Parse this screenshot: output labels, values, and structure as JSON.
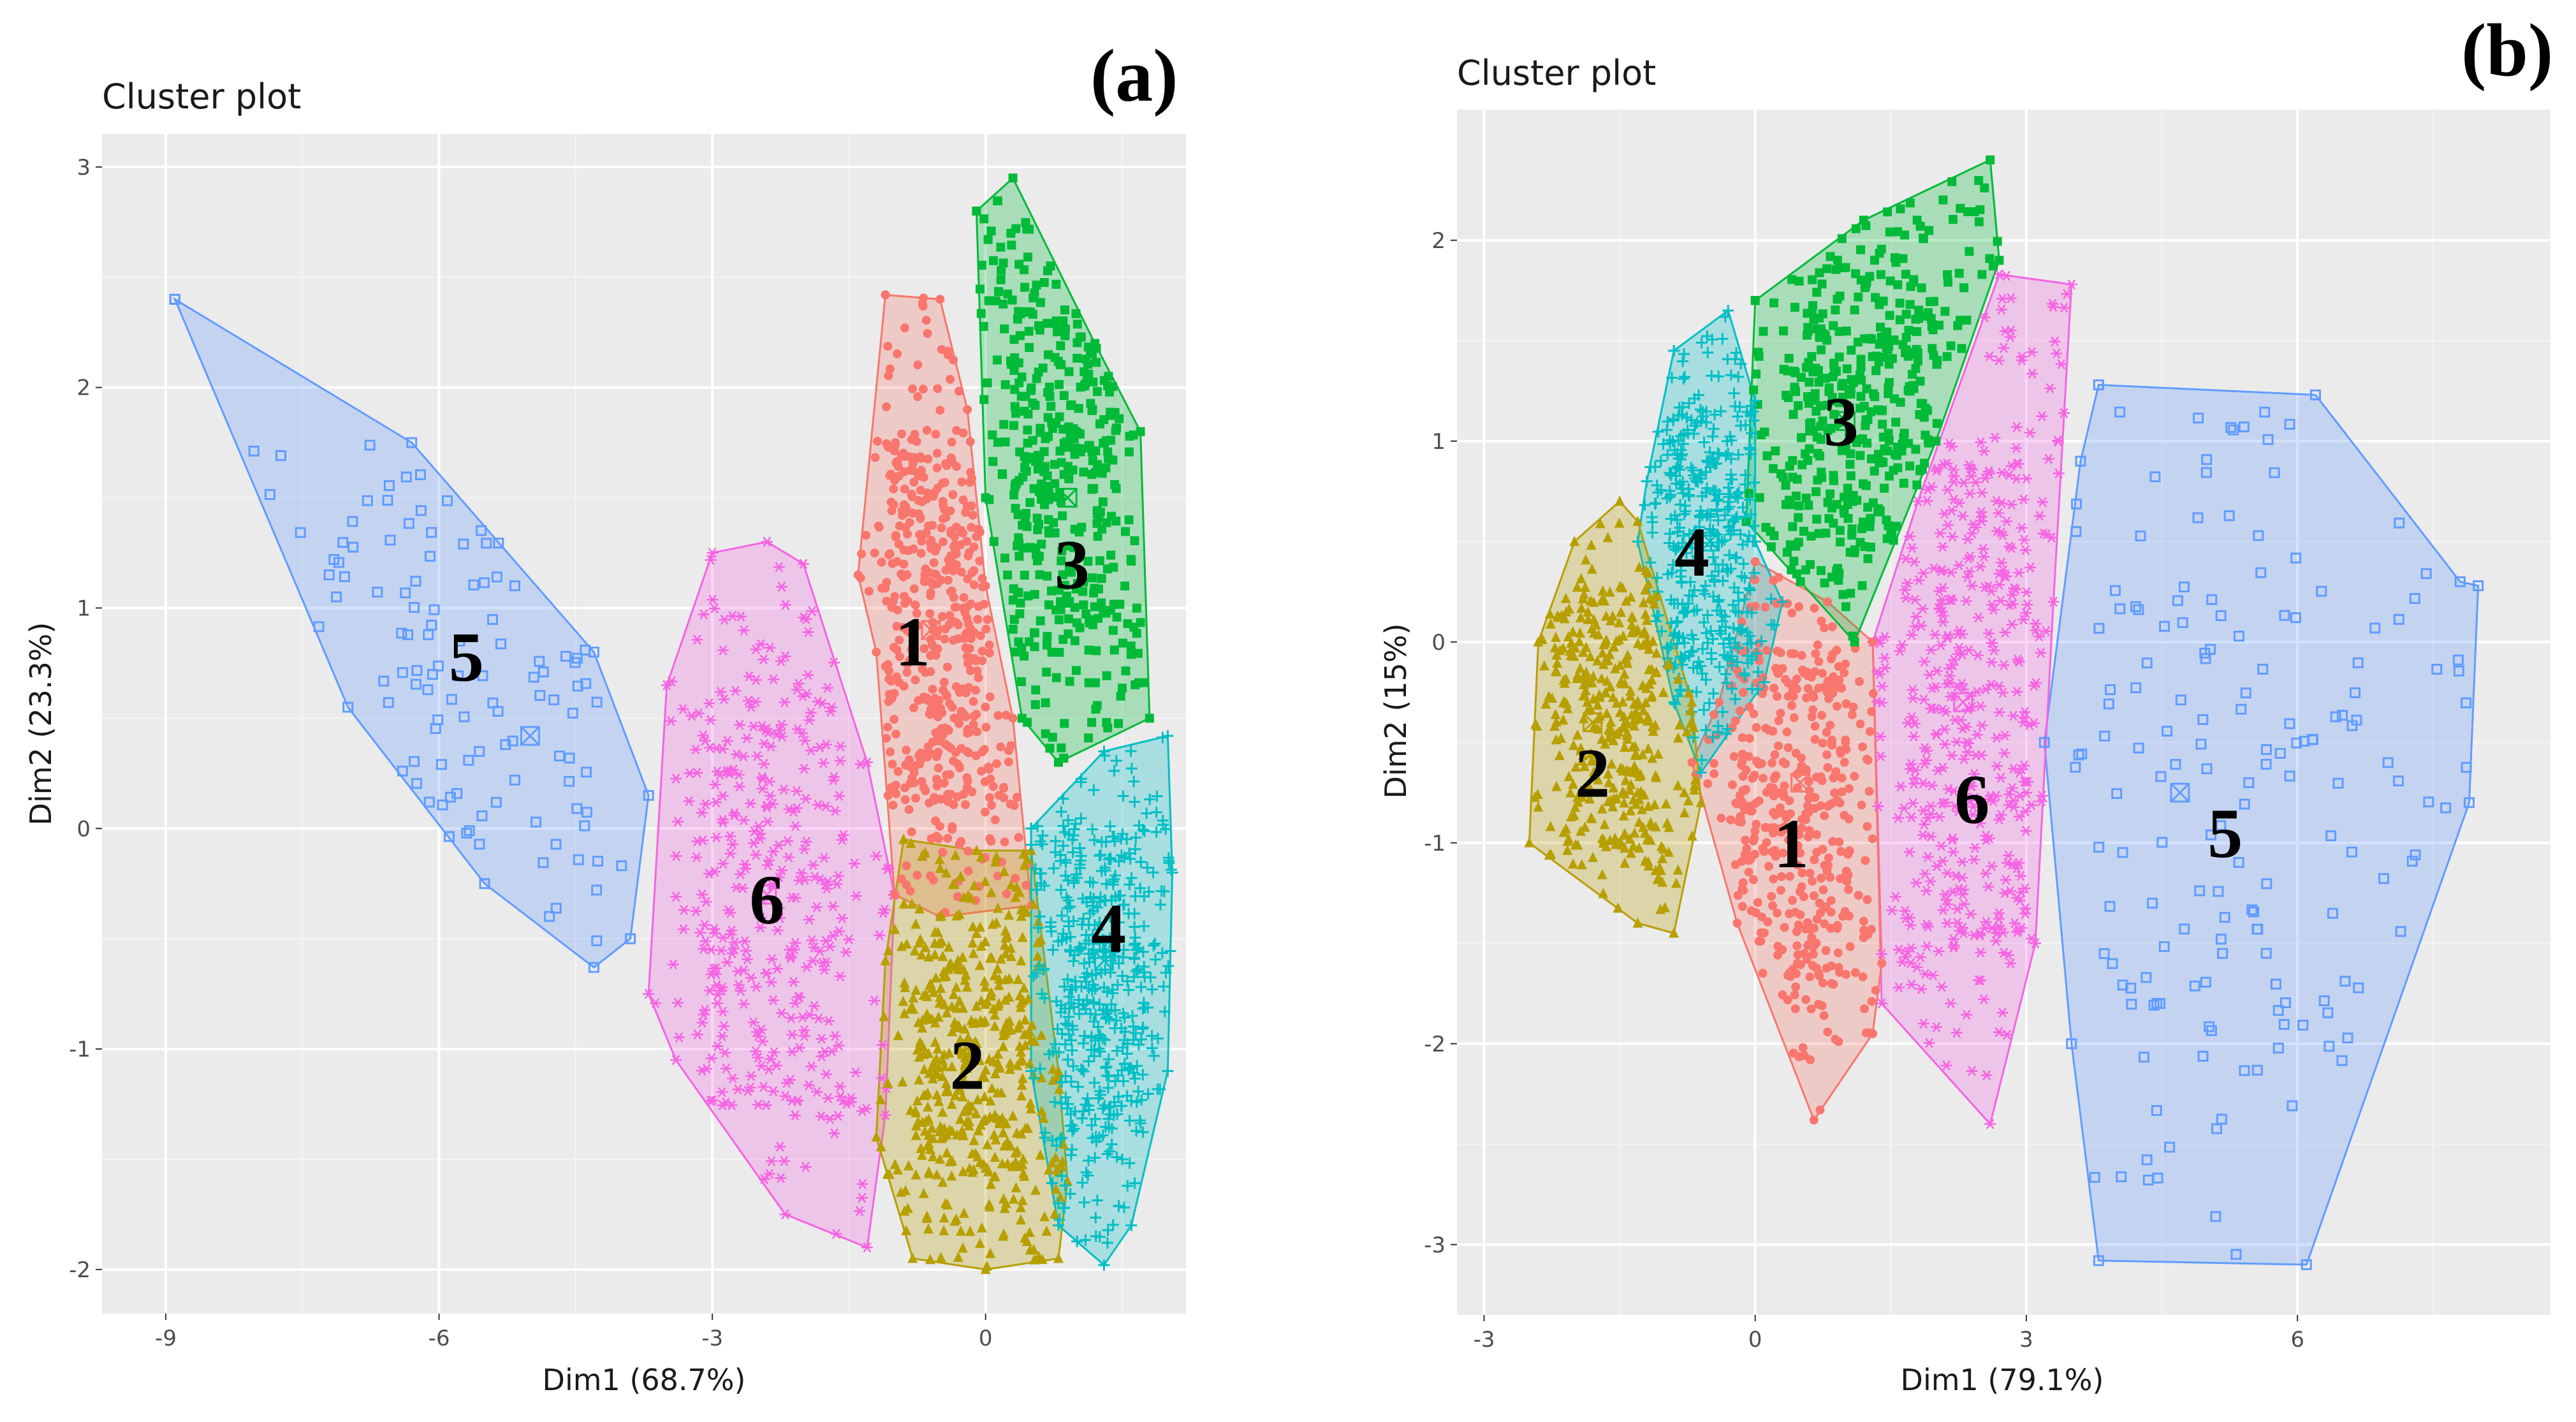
{
  "chart_data": [
    {
      "type": "scatter",
      "panel_label": "(a)",
      "title": "Cluster plot",
      "xlabel": "Dim1 (68.7%)",
      "ylabel": "Dim2 (23.3%)",
      "xlim": [
        -9.7,
        2.2
      ],
      "ylim": [
        -2.2,
        3.15
      ],
      "xticks": [
        -9,
        -6,
        -3,
        0
      ],
      "xtick_labels": [
        "-9",
        "-6",
        "-3",
        "0"
      ],
      "yticks": [
        -2,
        -1,
        0,
        1,
        2,
        3
      ],
      "ytick_labels": [
        "-2",
        "-1",
        "0",
        "1",
        "2",
        "3"
      ],
      "grid": true,
      "clusters": [
        {
          "id": "5",
          "label": "5",
          "color": "#619CFF",
          "marker": "square",
          "hull": [
            [
              -8.9,
              2.4
            ],
            [
              -6.3,
              1.75
            ],
            [
              -4.3,
              0.8
            ],
            [
              -3.7,
              0.15
            ],
            [
              -3.9,
              -0.5
            ],
            [
              -4.3,
              -0.63
            ],
            [
              -5.5,
              -0.25
            ],
            [
              -7.0,
              0.55
            ],
            [
              -8.9,
              2.4
            ]
          ],
          "center": [
            -5.0,
            0.42
          ],
          "label_pos": [
            -5.7,
            0.78
          ],
          "n": 110
        },
        {
          "id": "6",
          "label": "6",
          "color": "#F564E3",
          "marker": "star",
          "hull": [
            [
              -2.4,
              1.3
            ],
            [
              -2.0,
              1.2
            ],
            [
              -1.3,
              0.3
            ],
            [
              -1.0,
              -0.3
            ],
            [
              -1.1,
              -1.3
            ],
            [
              -1.3,
              -1.9
            ],
            [
              -2.2,
              -1.75
            ],
            [
              -3.4,
              -1.05
            ],
            [
              -3.7,
              -0.75
            ],
            [
              -3.5,
              0.65
            ],
            [
              -3.0,
              1.25
            ],
            [
              -2.4,
              1.3
            ]
          ],
          "center": [
            -2.4,
            -0.3
          ],
          "label_pos": [
            -2.4,
            -0.32
          ],
          "n": 380
        },
        {
          "id": "1",
          "label": "1",
          "color": "#F8766D",
          "marker": "circle",
          "hull": [
            [
              -1.1,
              2.42
            ],
            [
              -0.5,
              2.4
            ],
            [
              -0.2,
              1.9
            ],
            [
              0.0,
              1.1
            ],
            [
              0.3,
              0.5
            ],
            [
              0.5,
              -0.35
            ],
            [
              -0.5,
              -0.4
            ],
            [
              -1.0,
              -0.3
            ],
            [
              -1.2,
              0.8
            ],
            [
              -1.4,
              1.15
            ],
            [
              -1.1,
              2.42
            ]
          ],
          "center": [
            -0.6,
            0.9
          ],
          "label_pos": [
            -0.8,
            0.85
          ],
          "n": 520
        },
        {
          "id": "3",
          "label": "3",
          "color": "#00BA38",
          "marker": "filled-square",
          "hull": [
            [
              -0.1,
              2.8
            ],
            [
              0.3,
              2.95
            ],
            [
              1.2,
              2.2
            ],
            [
              1.7,
              1.8
            ],
            [
              1.8,
              0.5
            ],
            [
              0.8,
              0.3
            ],
            [
              0.4,
              0.5
            ],
            [
              0.0,
              1.5
            ],
            [
              -0.1,
              2.8
            ]
          ],
          "center": [
            0.9,
            1.5
          ],
          "label_pos": [
            0.95,
            1.2
          ],
          "n": 430
        },
        {
          "id": "2",
          "label": "2",
          "color": "#B79F00",
          "marker": "triangle",
          "hull": [
            [
              -0.9,
              -0.05
            ],
            [
              -0.1,
              -0.1
            ],
            [
              0.5,
              -0.1
            ],
            [
              0.8,
              -1.1
            ],
            [
              0.9,
              -1.6
            ],
            [
              0.8,
              -1.95
            ],
            [
              0.0,
              -2.0
            ],
            [
              -0.8,
              -1.95
            ],
            [
              -1.2,
              -1.4
            ],
            [
              -1.1,
              -0.6
            ],
            [
              -0.9,
              -0.05
            ]
          ],
          "center": [
            -0.2,
            -1.0
          ],
          "label_pos": [
            -0.2,
            -1.07
          ],
          "n": 470
        },
        {
          "id": "4",
          "label": "4",
          "color": "#00BFC4",
          "marker": "plus",
          "hull": [
            [
              0.5,
              0.0
            ],
            [
              1.3,
              0.35
            ],
            [
              2.0,
              0.42
            ],
            [
              2.05,
              -0.2
            ],
            [
              2.0,
              -1.1
            ],
            [
              1.6,
              -1.8
            ],
            [
              1.3,
              -1.98
            ],
            [
              0.8,
              -1.8
            ],
            [
              0.5,
              -1.1
            ],
            [
              0.5,
              0.0
            ]
          ],
          "center": [
            1.3,
            -0.6
          ],
          "label_pos": [
            1.35,
            -0.45
          ],
          "n": 480
        }
      ]
    },
    {
      "type": "scatter",
      "panel_label": "(b)",
      "title": "Cluster plot",
      "xlabel": "Dim1 (79.1%)",
      "ylabel": "Dim2 (15%)",
      "xlim": [
        -3.3,
        8.8
      ],
      "ylim": [
        -3.35,
        2.65
      ],
      "xticks": [
        -3,
        0,
        3,
        6
      ],
      "xtick_labels": [
        "-3",
        "0",
        "3",
        "6"
      ],
      "yticks": [
        -3,
        -2,
        -1,
        0,
        1,
        2
      ],
      "ytick_labels": [
        "-3",
        "-2",
        "-1",
        "0",
        "1",
        "2"
      ],
      "grid": true,
      "clusters": [
        {
          "id": "5",
          "label": "5",
          "color": "#619CFF",
          "marker": "square",
          "hull": [
            [
              3.8,
              1.28
            ],
            [
              6.2,
              1.23
            ],
            [
              7.8,
              0.3
            ],
            [
              8.0,
              0.28
            ],
            [
              7.9,
              -0.8
            ],
            [
              6.1,
              -3.1
            ],
            [
              3.8,
              -3.08
            ],
            [
              3.5,
              -2.0
            ],
            [
              3.2,
              -0.5
            ],
            [
              3.6,
              0.9
            ],
            [
              3.8,
              1.28
            ]
          ],
          "center": [
            4.7,
            -0.75
          ],
          "label_pos": [
            5.2,
            -0.95
          ],
          "n": 160
        },
        {
          "id": "6",
          "label": "6",
          "color": "#F564E3",
          "marker": "star",
          "hull": [
            [
              2.7,
              1.83
            ],
            [
              3.5,
              1.78
            ],
            [
              3.3,
              0.2
            ],
            [
              3.1,
              -1.5
            ],
            [
              2.6,
              -2.4
            ],
            [
              1.4,
              -1.8
            ],
            [
              1.3,
              0.0
            ],
            [
              1.8,
              0.7
            ],
            [
              2.7,
              1.83
            ]
          ],
          "center": [
            2.3,
            -0.3
          ],
          "label_pos": [
            2.4,
            -0.78
          ],
          "n": 470
        },
        {
          "id": "1",
          "label": "1",
          "color": "#F8766D",
          "marker": "circle",
          "hull": [
            [
              0.0,
              0.4
            ],
            [
              0.8,
              0.2
            ],
            [
              1.3,
              0.0
            ],
            [
              1.4,
              -1.6
            ],
            [
              1.3,
              -1.95
            ],
            [
              0.65,
              -2.38
            ],
            [
              -0.2,
              -1.4
            ],
            [
              -0.7,
              -0.6
            ],
            [
              -0.4,
              -0.3
            ],
            [
              0.0,
              0.4
            ]
          ],
          "center": [
            0.5,
            -0.7
          ],
          "label_pos": [
            0.4,
            -1.0
          ],
          "n": 440
        },
        {
          "id": "3",
          "label": "3",
          "color": "#00BA38",
          "marker": "filled-square",
          "hull": [
            [
              0.0,
              1.7
            ],
            [
              1.2,
              2.1
            ],
            [
              2.6,
              2.4
            ],
            [
              2.7,
              1.9
            ],
            [
              2.0,
              1.0
            ],
            [
              1.1,
              0.0
            ],
            [
              0.5,
              0.3
            ],
            [
              -0.1,
              0.6
            ],
            [
              0.0,
              1.7
            ]
          ],
          "center": [
            1.0,
            1.1
          ],
          "label_pos": [
            0.95,
            1.1
          ],
          "n": 430
        },
        {
          "id": "4",
          "label": "4",
          "color": "#00BFC4",
          "marker": "plus",
          "hull": [
            [
              -0.9,
              1.45
            ],
            [
              -0.3,
              1.65
            ],
            [
              0.0,
              1.2
            ],
            [
              0.0,
              0.5
            ],
            [
              0.3,
              0.2
            ],
            [
              0.1,
              -0.2
            ],
            [
              -0.6,
              -0.65
            ],
            [
              -0.9,
              -0.3
            ],
            [
              -1.3,
              0.5
            ],
            [
              -1.2,
              0.8
            ],
            [
              -0.9,
              1.45
            ]
          ],
          "center": [
            -0.5,
            0.5
          ],
          "label_pos": [
            -0.7,
            0.45
          ],
          "n": 420
        },
        {
          "id": "2",
          "label": "2",
          "color": "#B79F00",
          "marker": "triangle",
          "hull": [
            [
              -1.5,
              0.7
            ],
            [
              -1.3,
              0.6
            ],
            [
              -0.7,
              -0.3
            ],
            [
              -0.6,
              -0.8
            ],
            [
              -0.9,
              -1.45
            ],
            [
              -1.3,
              -1.4
            ],
            [
              -2.5,
              -1.0
            ],
            [
              -2.4,
              0.0
            ],
            [
              -2.0,
              0.5
            ],
            [
              -1.5,
              0.7
            ]
          ],
          "center": [
            -1.8,
            -0.4
          ],
          "label_pos": [
            -1.8,
            -0.65
          ],
          "n": 390
        }
      ]
    }
  ]
}
